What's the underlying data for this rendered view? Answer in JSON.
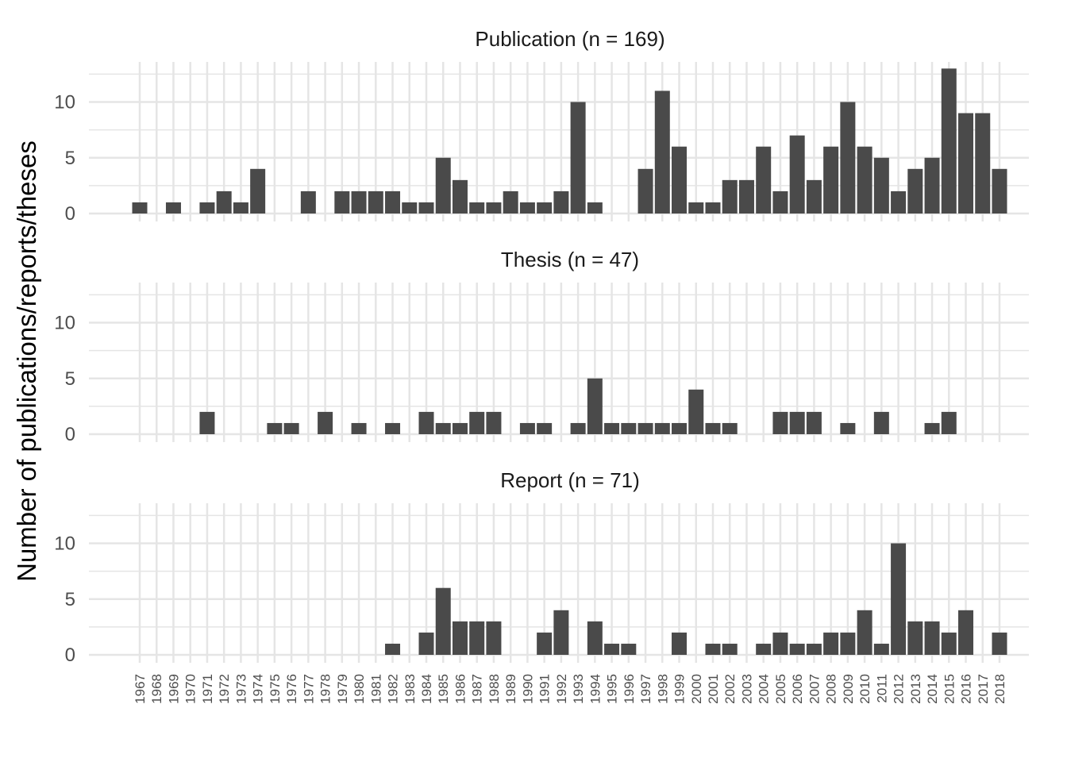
{
  "chart_data": {
    "type": "bar",
    "ylabel": "Number of publications/reports/theses",
    "xlabel": "",
    "ylim": [
      0,
      13
    ],
    "yticks": [
      0,
      5,
      10
    ],
    "grid": true,
    "bar_color": "#4a4a4a",
    "grid_color": "#e5e5e5",
    "categories": [
      "1967",
      "1968",
      "1969",
      "1970",
      "1971",
      "1972",
      "1973",
      "1974",
      "1975",
      "1976",
      "1977",
      "1978",
      "1979",
      "1980",
      "1981",
      "1982",
      "1983",
      "1984",
      "1985",
      "1986",
      "1987",
      "1988",
      "1989",
      "1990",
      "1991",
      "1992",
      "1993",
      "1994",
      "1995",
      "1996",
      "1997",
      "1998",
      "1999",
      "2000",
      "2001",
      "2002",
      "2003",
      "2004",
      "2005",
      "2006",
      "2007",
      "2008",
      "2009",
      "2010",
      "2011",
      "2012",
      "2013",
      "2014",
      "2015",
      "2016",
      "2017",
      "2018"
    ],
    "panels": [
      {
        "title": "Publication (n = 169)",
        "values": [
          1,
          0,
          1,
          0,
          1,
          2,
          1,
          4,
          0,
          0,
          2,
          0,
          2,
          2,
          2,
          2,
          1,
          1,
          5,
          3,
          1,
          1,
          2,
          1,
          1,
          2,
          10,
          1,
          0,
          0,
          4,
          11,
          6,
          1,
          1,
          3,
          3,
          6,
          2,
          7,
          3,
          6,
          10,
          6,
          5,
          2,
          4,
          5,
          13,
          9,
          9,
          4
        ]
      },
      {
        "title": "Thesis (n = 47)",
        "values": [
          0,
          0,
          0,
          0,
          2,
          0,
          0,
          0,
          1,
          1,
          0,
          2,
          0,
          1,
          0,
          1,
          0,
          2,
          1,
          1,
          2,
          2,
          0,
          1,
          1,
          0,
          1,
          5,
          1,
          1,
          1,
          1,
          1,
          4,
          1,
          1,
          0,
          0,
          2,
          2,
          2,
          0,
          1,
          0,
          2,
          0,
          0,
          1,
          2,
          0,
          0,
          0
        ]
      },
      {
        "title": "Report (n = 71)",
        "values": [
          0,
          0,
          0,
          0,
          0,
          0,
          0,
          0,
          0,
          0,
          0,
          0,
          0,
          0,
          0,
          1,
          0,
          2,
          6,
          3,
          3,
          3,
          0,
          0,
          2,
          4,
          0,
          3,
          1,
          1,
          0,
          0,
          2,
          0,
          1,
          1,
          0,
          1,
          2,
          1,
          1,
          2,
          2,
          4,
          1,
          10,
          3,
          3,
          2,
          4,
          0,
          2
        ]
      }
    ]
  }
}
